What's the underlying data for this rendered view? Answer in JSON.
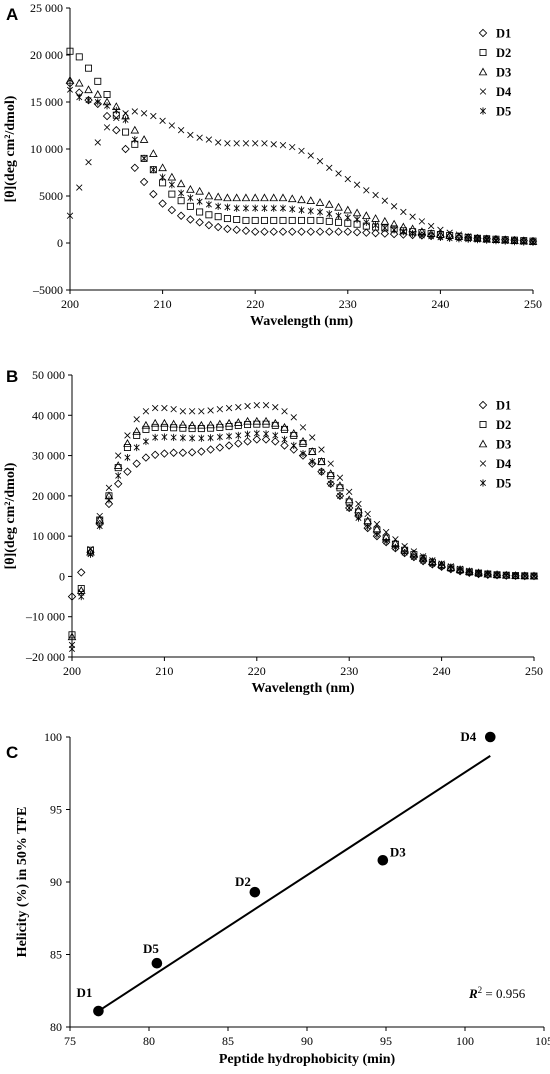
{
  "chart_data": [
    {
      "panel": "A",
      "type": "scatter",
      "xlabel": "Wavelength (nm)",
      "ylabel": "[θ](deg cm²/dmol)",
      "xlim": [
        200,
        250
      ],
      "ylim": [
        -5000,
        25000
      ],
      "xticks": [
        200,
        210,
        220,
        230,
        240,
        250
      ],
      "yticks": [
        -5000,
        0,
        5000,
        10000,
        15000,
        20000,
        25000
      ],
      "xtick_labels": [
        "200",
        "210",
        "220",
        "230",
        "240",
        "250"
      ],
      "ytick_labels": [
        "–5000",
        "0",
        "5000",
        "10 000",
        "15 000",
        "20 000",
        "25 000"
      ],
      "legend_position": "top-right",
      "x": [
        200,
        201,
        202,
        203,
        204,
        205,
        206,
        207,
        208,
        209,
        210,
        211,
        212,
        213,
        214,
        215,
        216,
        217,
        218,
        219,
        220,
        221,
        222,
        223,
        224,
        225,
        226,
        227,
        228,
        229,
        230,
        231,
        232,
        233,
        234,
        235,
        236,
        237,
        238,
        239,
        240,
        241,
        242,
        243,
        244,
        245,
        246,
        247,
        248,
        249,
        250
      ],
      "series": [
        {
          "name": "D1",
          "marker": "diamond",
          "values": [
            17000,
            16000,
            15200,
            14800,
            13500,
            12000,
            10000,
            8000,
            6500,
            5200,
            4200,
            3500,
            2900,
            2500,
            2200,
            1900,
            1700,
            1500,
            1400,
            1300,
            1200,
            1200,
            1200,
            1200,
            1200,
            1200,
            1200,
            1200,
            1200,
            1200,
            1200,
            1150,
            1100,
            1050,
            1000,
            950,
            900,
            850,
            800,
            750,
            700,
            650,
            600,
            550,
            500,
            450,
            400,
            350,
            300,
            250,
            200
          ]
        },
        {
          "name": "D2",
          "marker": "square",
          "values": [
            20400,
            19800,
            18600,
            17200,
            15800,
            13600,
            11800,
            10500,
            9000,
            7800,
            6400,
            5200,
            4500,
            3900,
            3300,
            3000,
            2800,
            2600,
            2500,
            2400,
            2400,
            2400,
            2400,
            2400,
            2400,
            2400,
            2400,
            2400,
            2300,
            2200,
            2100,
            2000,
            1800,
            1700,
            1600,
            1500,
            1300,
            1200,
            1100,
            1000,
            900,
            800,
            700,
            600,
            500,
            450,
            400,
            350,
            300,
            250,
            200
          ]
        },
        {
          "name": "D3",
          "marker": "triangle",
          "values": [
            17300,
            17000,
            16300,
            15800,
            15000,
            14500,
            13500,
            12000,
            11000,
            9500,
            8000,
            7000,
            6300,
            5700,
            5500,
            5000,
            4900,
            4800,
            4800,
            4800,
            4800,
            4800,
            4800,
            4800,
            4700,
            4600,
            4500,
            4300,
            4100,
            3800,
            3500,
            3200,
            2900,
            2600,
            2300,
            2000,
            1700,
            1500,
            1200,
            1000,
            900,
            800,
            700,
            600,
            500,
            400,
            350,
            300,
            250,
            200,
            150
          ]
        },
        {
          "name": "D4",
          "marker": "x",
          "values": [
            2900,
            5900,
            8600,
            10700,
            12300,
            13300,
            13800,
            14000,
            13800,
            13500,
            13000,
            12500,
            12000,
            11500,
            11200,
            11000,
            10700,
            10600,
            10600,
            10600,
            10600,
            10600,
            10500,
            10400,
            10200,
            9800,
            9300,
            8700,
            8000,
            7400,
            6800,
            6200,
            5600,
            5100,
            4500,
            3900,
            3300,
            2800,
            2300,
            1800,
            1400,
            1100,
            900,
            700,
            500,
            400,
            300,
            250,
            200,
            150,
            100
          ]
        },
        {
          "name": "D5",
          "marker": "asterisk",
          "values": [
            16300,
            15500,
            15200,
            15000,
            14600,
            14100,
            13100,
            11000,
            9000,
            7800,
            7000,
            6200,
            5300,
            4800,
            4400,
            4100,
            3900,
            3800,
            3700,
            3700,
            3700,
            3700,
            3700,
            3700,
            3600,
            3500,
            3400,
            3300,
            3100,
            2900,
            2700,
            2500,
            2200,
            1900,
            1600,
            1400,
            1200,
            1000,
            800,
            700,
            600,
            500,
            450,
            400,
            350,
            300,
            250,
            200,
            150,
            100,
            80
          ]
        }
      ]
    },
    {
      "panel": "B",
      "type": "scatter",
      "xlabel": "Wavelength (nm)",
      "ylabel": "[θ](deg cm²/dmol)",
      "xlim": [
        200,
        250
      ],
      "ylim": [
        -20000,
        50000
      ],
      "xticks": [
        200,
        210,
        220,
        230,
        240,
        250
      ],
      "yticks": [
        -20000,
        -10000,
        0,
        10000,
        20000,
        30000,
        40000,
        50000
      ],
      "xtick_labels": [
        "200",
        "210",
        "220",
        "230",
        "240",
        "250"
      ],
      "ytick_labels": [
        "–20 000",
        "–10 000",
        "0",
        "10 000",
        "20 000",
        "30 000",
        "40 000",
        "50 000"
      ],
      "legend_position": "top-right",
      "x": [
        200,
        201,
        202,
        203,
        204,
        205,
        206,
        207,
        208,
        209,
        210,
        211,
        212,
        213,
        214,
        215,
        216,
        217,
        218,
        219,
        220,
        221,
        222,
        223,
        224,
        225,
        226,
        227,
        228,
        229,
        230,
        231,
        232,
        233,
        234,
        235,
        236,
        237,
        238,
        239,
        240,
        241,
        242,
        243,
        244,
        245,
        246,
        247,
        248,
        249,
        250
      ],
      "series": [
        {
          "name": "D1",
          "marker": "diamond",
          "values": [
            -5000,
            1000,
            6000,
            13000,
            18000,
            23000,
            26000,
            28000,
            29500,
            30200,
            30500,
            30700,
            30700,
            30800,
            31000,
            31500,
            32000,
            32500,
            33000,
            33500,
            34000,
            34000,
            33500,
            32500,
            31500,
            30000,
            28000,
            26000,
            23000,
            20000,
            17000,
            15000,
            12000,
            10000,
            8500,
            7000,
            5800,
            4800,
            3800,
            3000,
            2400,
            1800,
            1300,
            900,
            600,
            400,
            300,
            200,
            150,
            100,
            80
          ]
        },
        {
          "name": "D2",
          "marker": "square",
          "values": [
            -14500,
            -3000,
            6500,
            14000,
            20000,
            27000,
            32000,
            35000,
            36500,
            37000,
            37000,
            36900,
            36800,
            36700,
            36700,
            36800,
            37000,
            37200,
            37500,
            37700,
            37800,
            37800,
            37500,
            36500,
            35000,
            33000,
            31000,
            28500,
            25000,
            22000,
            18500,
            16000,
            13500,
            11500,
            9500,
            8000,
            6500,
            5400,
            4400,
            3500,
            2800,
            2100,
            1600,
            1100,
            800,
            600,
            400,
            300,
            200,
            150,
            100
          ]
        },
        {
          "name": "D3",
          "marker": "triangle",
          "values": [
            -15000,
            -3500,
            6000,
            14000,
            20000,
            27500,
            33000,
            36000,
            37500,
            38000,
            38000,
            37800,
            37700,
            37500,
            37500,
            37600,
            37800,
            38000,
            38200,
            38500,
            38500,
            38500,
            38000,
            37000,
            35500,
            33500,
            31000,
            28500,
            25500,
            22500,
            19000,
            16500,
            13800,
            11800,
            9800,
            8200,
            6800,
            5600,
            4600,
            3700,
            2900,
            2200,
            1700,
            1200,
            900,
            600,
            450,
            300,
            200,
            150,
            100
          ]
        },
        {
          "name": "D4",
          "marker": "x",
          "values": [
            -17000,
            -4000,
            6800,
            15000,
            22000,
            30000,
            35000,
            39000,
            41000,
            41800,
            41800,
            41500,
            41000,
            41000,
            41000,
            41200,
            41500,
            41800,
            42000,
            42300,
            42500,
            42500,
            42000,
            41000,
            39500,
            37000,
            34500,
            31500,
            28000,
            24500,
            21000,
            18000,
            15500,
            13000,
            11000,
            9200,
            7500,
            6200,
            5000,
            4000,
            3200,
            2500,
            1900,
            1400,
            1000,
            700,
            500,
            350,
            250,
            150,
            100
          ]
        },
        {
          "name": "D5",
          "marker": "asterisk",
          "values": [
            -18000,
            -5000,
            5500,
            12500,
            19000,
            25000,
            29500,
            32000,
            33500,
            34500,
            34600,
            34500,
            34400,
            34300,
            34300,
            34400,
            34600,
            34800,
            35000,
            35300,
            35500,
            35400,
            35000,
            34000,
            32500,
            30500,
            28500,
            26000,
            23000,
            20000,
            17000,
            14500,
            12300,
            10300,
            8700,
            7200,
            5900,
            4800,
            3900,
            3100,
            2500,
            1900,
            1400,
            1000,
            700,
            500,
            350,
            250,
            150,
            100,
            80
          ]
        }
      ]
    },
    {
      "panel": "C",
      "type": "scatter",
      "xlabel": "Peptide hydrophobicity (min)",
      "ylabel": "Helicity (%) in 50% TFE",
      "xlim": [
        75,
        105
      ],
      "ylim": [
        80,
        100
      ],
      "xticks": [
        75,
        80,
        85,
        90,
        95,
        100,
        105
      ],
      "yticks": [
        80,
        85,
        90,
        95,
        100
      ],
      "xtick_labels": [
        "75",
        "80",
        "85",
        "90",
        "95",
        "100",
        "105"
      ],
      "ytick_labels": [
        "80",
        "85",
        "90",
        "95",
        "100"
      ],
      "points": [
        {
          "label": "D1",
          "x": 76.8,
          "y": 81.1
        },
        {
          "label": "D5",
          "x": 80.5,
          "y": 84.4
        },
        {
          "label": "D2",
          "x": 86.7,
          "y": 89.3
        },
        {
          "label": "D3",
          "x": 94.8,
          "y": 91.5
        },
        {
          "label": "D4",
          "x": 101.6,
          "y": 100.0
        }
      ],
      "fit_line": {
        "x": [
          76.8,
          101.6
        ],
        "y": [
          81.1,
          98.7
        ]
      },
      "annotation": {
        "r2_prefix": "R",
        "r2_sup": "2",
        "r2_value": " = 0.956"
      }
    }
  ]
}
